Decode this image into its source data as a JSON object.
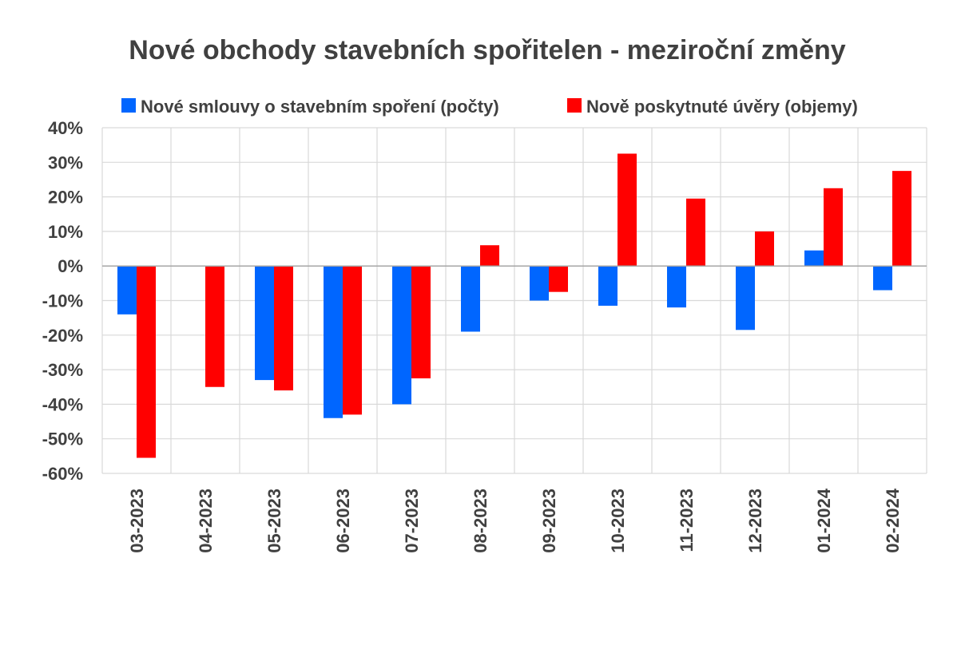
{
  "chart_data": {
    "type": "bar",
    "title": "Nové obchody stavebních spořitelen - meziroční změny",
    "categories": [
      "03-2023",
      "04-2023",
      "05-2023",
      "06-2023",
      "07-2023",
      "08-2023",
      "09-2023",
      "10-2023",
      "11-2023",
      "12-2023",
      "01-2024",
      "02-2024"
    ],
    "series": [
      {
        "name": "Nové smlouvy o stavebním spoření (počty)",
        "color": "#0066FF",
        "values": [
          -14,
          0,
          -33,
          -44,
          -40,
          -19,
          -10,
          -11.5,
          -12,
          -18.5,
          4.5,
          -7
        ]
      },
      {
        "name": "Nově poskytnuté úvěry (objemy)",
        "color": "#FF0000",
        "values": [
          -55.5,
          -35,
          -36,
          -43,
          -32.5,
          6,
          -7.5,
          32.5,
          19.5,
          10,
          22.5,
          27.5
        ]
      }
    ],
    "ylim": [
      -60,
      40
    ],
    "yticks": [
      "40%",
      "30%",
      "20%",
      "10%",
      "0%",
      "-10%",
      "-20%",
      "-30%",
      "-40%",
      "-50%",
      "-60%"
    ],
    "ytick_values": [
      40,
      30,
      20,
      10,
      0,
      -10,
      -20,
      -30,
      -40,
      -50,
      -60
    ],
    "xlabel": "",
    "ylabel": "",
    "legend": "top",
    "grid": true
  }
}
